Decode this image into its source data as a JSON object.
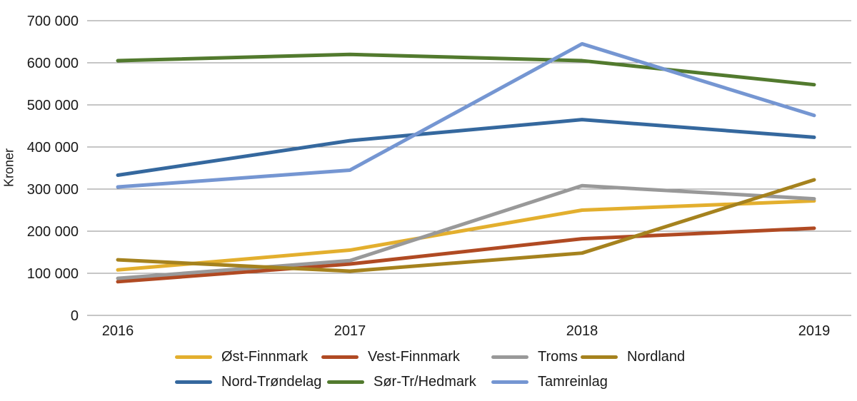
{
  "chart_data": {
    "type": "line",
    "title": "",
    "xlabel": "",
    "ylabel": "Kroner",
    "x_labels": [
      "2016",
      "2017",
      "2018",
      "2019"
    ],
    "ylim": [
      0,
      700000
    ],
    "ytick_step": 100000,
    "ytick_labels": [
      "0",
      "100 000",
      "200 000",
      "300 000",
      "400 000",
      "500 000",
      "600 000",
      "700 000"
    ],
    "grid": true,
    "legend_position": "bottom",
    "series": [
      {
        "name": "Øst-Finnmark",
        "color": "#E3AF2E",
        "values": [
          108000,
          155000,
          250000,
          272000
        ]
      },
      {
        "name": "Vest-Finnmark",
        "color": "#B04A23",
        "values": [
          80000,
          122000,
          182000,
          207000
        ]
      },
      {
        "name": "Troms",
        "color": "#999999",
        "values": [
          88000,
          130000,
          308000,
          277000
        ]
      },
      {
        "name": "Nordland",
        "color": "#A5821E",
        "values": [
          132000,
          105000,
          148000,
          322000
        ]
      },
      {
        "name": "Nord-Trøndelag",
        "color": "#35689E",
        "values": [
          333000,
          415000,
          465000,
          423000
        ]
      },
      {
        "name": "Sør-Tr/Hedmark",
        "color": "#527A2E",
        "values": [
          605000,
          620000,
          605000,
          548000
        ]
      },
      {
        "name": "Tamreinlag",
        "color": "#7596D2",
        "values": [
          305000,
          345000,
          645000,
          475000
        ]
      }
    ]
  },
  "colors": {
    "background": "#FFFFFF",
    "grid": "#8C8C8C",
    "text": "#1A1A1A"
  }
}
